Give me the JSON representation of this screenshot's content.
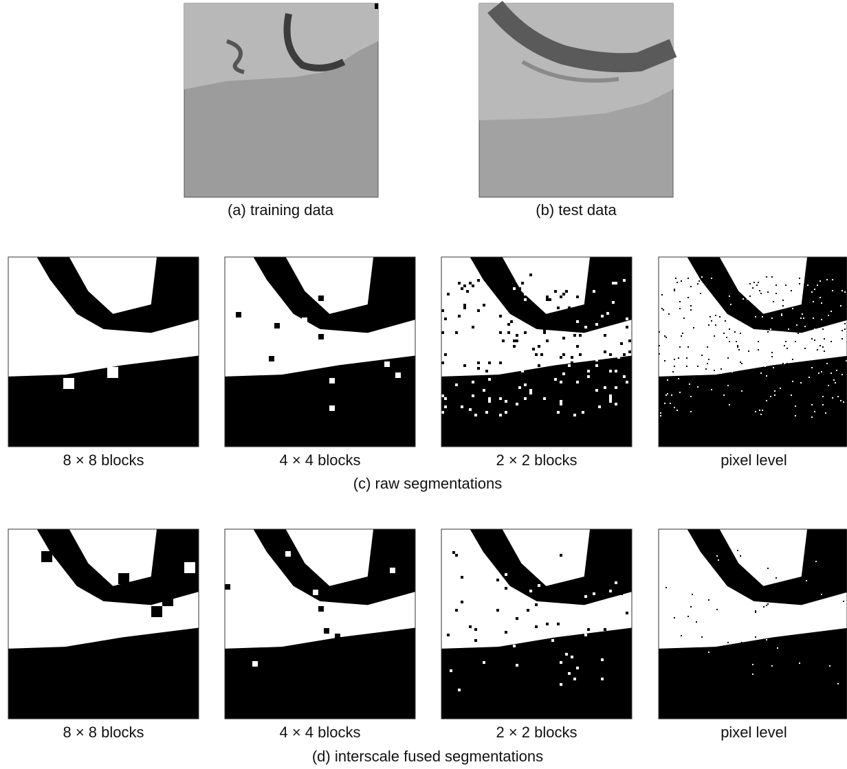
{
  "figure": {
    "top": [
      {
        "caption": "(a) training data"
      },
      {
        "caption": "(b) test data"
      }
    ],
    "rows": [
      {
        "labels": [
          "8 × 8 blocks",
          "4 × 4 blocks",
          "2 × 2 blocks",
          "pixel level"
        ],
        "caption": "(c) raw segmentations"
      },
      {
        "labels": [
          "8 × 8 blocks",
          "4 × 4 blocks",
          "2 × 2 blocks",
          "pixel level"
        ],
        "caption": "(d) interscale fused segmentations"
      }
    ]
  }
}
